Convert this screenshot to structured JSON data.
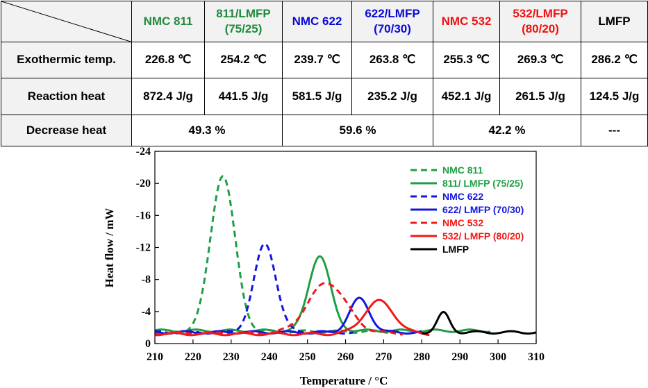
{
  "table": {
    "headers": [
      {
        "text": "NMC 811",
        "color": "#1f8a3b"
      },
      {
        "text": "811/LMFP (75/25)",
        "color": "#1f8a3b"
      },
      {
        "text": "NMC 622",
        "color": "#0a0ad6"
      },
      {
        "text": "622/LMFP (70/30)",
        "color": "#0a0ad6"
      },
      {
        "text": "NMC 532",
        "color": "#f01010"
      },
      {
        "text": "532/LMFP (80/20)",
        "color": "#f01010"
      },
      {
        "text": "LMFP",
        "color": "#000000"
      }
    ],
    "rows": [
      {
        "label": "Exothermic temp.",
        "cells": [
          "226.8 ℃",
          "254.2 ℃",
          "239.7 ℃",
          "263.8 ℃",
          "255.3 ℃",
          "269.3 ℃",
          "286.2 ℃"
        ]
      },
      {
        "label": "Reaction heat",
        "cells": [
          "872.4 J/g",
          "441.5 J/g",
          "581.5 J/g",
          "235.2 J/g",
          "452.1 J/g",
          "261.5 J/g",
          "124.5 J/g"
        ]
      },
      {
        "label": "Decrease heat",
        "cells": [
          "49.3 %",
          "59.6 %",
          "42.2 %",
          "---"
        ]
      }
    ]
  },
  "chart_data": {
    "type": "line",
    "xlabel": "Temperature / °C",
    "ylabel": "Heat flow / mW",
    "xlim": [
      210,
      310
    ],
    "ylim": [
      0,
      -24
    ],
    "xticks": [
      210,
      220,
      230,
      240,
      250,
      260,
      270,
      280,
      290,
      300,
      310
    ],
    "yticks": [
      0,
      -4,
      -8,
      -12,
      -16,
      -20,
      -24
    ],
    "legend_position": "top-right",
    "series": [
      {
        "name": "NMC 811",
        "color": "#1f9e45",
        "dash": true,
        "baseline": -1.5,
        "peaks": [
          {
            "x": 227.8,
            "h": -21.0,
            "w": 3.2
          }
        ],
        "range": [
          210,
          275
        ]
      },
      {
        "name": "811/ LMFP (75/25)",
        "color": "#1f9e45",
        "dash": false,
        "baseline": -1.6,
        "peaks": [
          {
            "x": 253.2,
            "h": -11.0,
            "w": 2.8
          }
        ],
        "range": [
          210,
          298
        ]
      },
      {
        "name": "NMC 622",
        "color": "#1515e0",
        "dash": true,
        "baseline": -1.4,
        "peaks": [
          {
            "x": 238.9,
            "h": -12.4,
            "w": 2.9
          }
        ],
        "range": [
          210,
          262
        ]
      },
      {
        "name": "622/ LMFP (70/30)",
        "color": "#1515e0",
        "dash": false,
        "baseline": -1.4,
        "peaks": [
          {
            "x": 263.7,
            "h": -5.6,
            "w": 2.6
          }
        ],
        "range": [
          210,
          280
        ]
      },
      {
        "name": "NMC 532",
        "color": "#f01818",
        "dash": true,
        "baseline": -1.3,
        "peaks": [
          {
            "x": 255.2,
            "h": -7.6,
            "w": 5.0
          }
        ],
        "range": [
          210,
          275
        ]
      },
      {
        "name": "532/ LMFP (80/20)",
        "color": "#f01818",
        "dash": false,
        "baseline": -1.2,
        "peaks": [
          {
            "x": 268.8,
            "h": -5.3,
            "w": 3.9
          }
        ],
        "range": [
          210,
          282
        ]
      },
      {
        "name": "LMFP",
        "color": "#000000",
        "dash": false,
        "baseline": -1.4,
        "peaks": [
          {
            "x": 285.7,
            "h": -3.8,
            "w": 1.6
          }
        ],
        "range": [
          280,
          310
        ]
      }
    ]
  }
}
